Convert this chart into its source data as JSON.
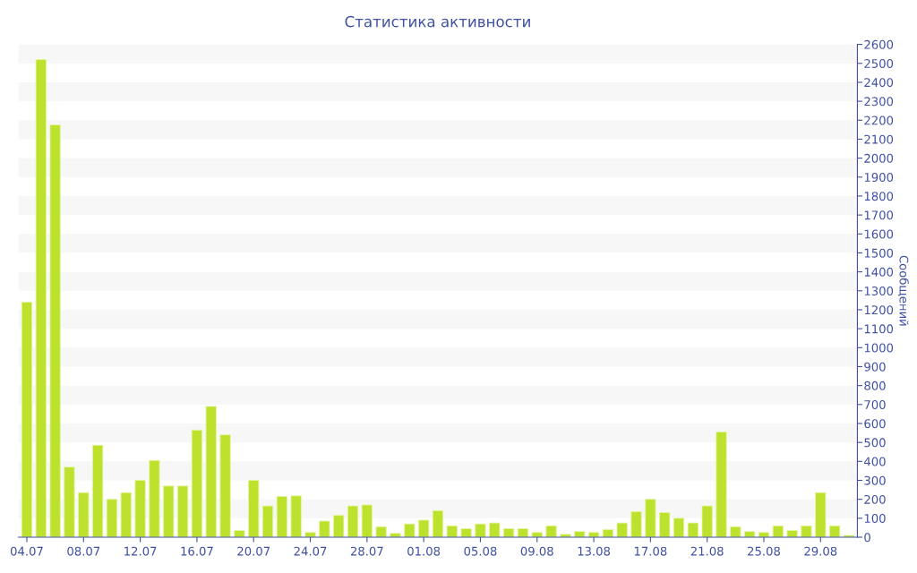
{
  "chart_data": {
    "type": "bar",
    "title": "Статистика активности",
    "ylabel": "Сообщений",
    "categories": [
      "04.07",
      null,
      null,
      null,
      "08.07",
      null,
      null,
      null,
      "12.07",
      null,
      null,
      null,
      "16.07",
      null,
      null,
      null,
      "20.07",
      null,
      null,
      null,
      "24.07",
      null,
      null,
      null,
      "28.07",
      null,
      null,
      null,
      "01.08",
      null,
      null,
      null,
      "05.08",
      null,
      null,
      null,
      "09.08",
      null,
      null,
      null,
      "13.08",
      null,
      null,
      null,
      "17.08",
      null,
      null,
      null,
      "21.08",
      null,
      null,
      null,
      "25.08",
      null,
      null,
      null,
      "29.08",
      null,
      null
    ],
    "values": [
      1240,
      2520,
      2175,
      370,
      235,
      485,
      200,
      235,
      300,
      405,
      270,
      270,
      565,
      690,
      540,
      35,
      300,
      165,
      215,
      218,
      25,
      85,
      115,
      165,
      170,
      55,
      20,
      70,
      90,
      140,
      60,
      45,
      70,
      75,
      45,
      45,
      25,
      60,
      15,
      30,
      25,
      40,
      75,
      135,
      200,
      130,
      100,
      75,
      165,
      555,
      55,
      30,
      25,
      60,
      35,
      60,
      235,
      60,
      10
    ],
    "color": "#bde22e",
    "ylim": [
      0,
      2600
    ],
    "yticks": [
      0,
      100,
      200,
      300,
      400,
      500,
      600,
      700,
      800,
      900,
      1000,
      1100,
      1200,
      1300,
      1400,
      1500,
      1600,
      1700,
      1800,
      1900,
      2000,
      2100,
      2200,
      2300,
      2400,
      2500,
      2600
    ],
    "legend": false
  }
}
